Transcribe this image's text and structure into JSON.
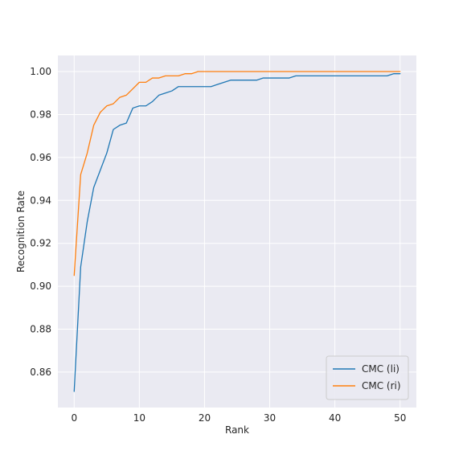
{
  "chart_data": {
    "type": "line",
    "title": "",
    "xlabel": "Rank",
    "ylabel": "Recognition Rate",
    "xlim": [
      -2.5,
      52.5
    ],
    "ylim": [
      0.8435,
      1.0075
    ],
    "xticks": [
      0,
      10,
      20,
      30,
      40,
      50
    ],
    "yticks": [
      0.86,
      0.88,
      0.9,
      0.92,
      0.94,
      0.96,
      0.98,
      1.0
    ],
    "xtick_labels": [
      "0",
      "10",
      "20",
      "30",
      "40",
      "50"
    ],
    "ytick_labels": [
      "0.86",
      "0.88",
      "0.90",
      "0.92",
      "0.94",
      "0.96",
      "0.98",
      "1.00"
    ],
    "grid": true,
    "background": "#eaeaf2",
    "legend_position": "lower-right",
    "x": [
      0,
      1,
      2,
      3,
      4,
      5,
      6,
      7,
      8,
      9,
      10,
      11,
      12,
      13,
      14,
      15,
      16,
      17,
      18,
      19,
      20,
      21,
      22,
      23,
      24,
      25,
      26,
      27,
      28,
      29,
      30,
      31,
      32,
      33,
      34,
      35,
      36,
      37,
      38,
      39,
      40,
      41,
      42,
      43,
      44,
      45,
      46,
      47,
      48,
      49,
      50
    ],
    "series": [
      {
        "name": "CMC (li)",
        "color": "#1f77b4",
        "values": [
          0.851,
          0.909,
          0.93,
          0.946,
          0.954,
          0.962,
          0.973,
          0.975,
          0.976,
          0.983,
          0.984,
          0.984,
          0.986,
          0.989,
          0.99,
          0.991,
          0.993,
          0.993,
          0.993,
          0.993,
          0.993,
          0.993,
          0.994,
          0.995,
          0.996,
          0.996,
          0.996,
          0.996,
          0.996,
          0.997,
          0.997,
          0.997,
          0.997,
          0.997,
          0.998,
          0.998,
          0.998,
          0.998,
          0.998,
          0.998,
          0.998,
          0.998,
          0.998,
          0.998,
          0.998,
          0.998,
          0.998,
          0.998,
          0.998,
          0.999,
          0.999
        ]
      },
      {
        "name": "CMC (ri)",
        "color": "#ff7f0e",
        "values": [
          0.905,
          0.952,
          0.962,
          0.975,
          0.981,
          0.984,
          0.985,
          0.988,
          0.989,
          0.992,
          0.995,
          0.995,
          0.997,
          0.997,
          0.998,
          0.998,
          0.998,
          0.999,
          0.999,
          1.0,
          1.0,
          1.0,
          1.0,
          1.0,
          1.0,
          1.0,
          1.0,
          1.0,
          1.0,
          1.0,
          1.0,
          1.0,
          1.0,
          1.0,
          1.0,
          1.0,
          1.0,
          1.0,
          1.0,
          1.0,
          1.0,
          1.0,
          1.0,
          1.0,
          1.0,
          1.0,
          1.0,
          1.0,
          1.0,
          1.0,
          1.0
        ]
      }
    ]
  }
}
